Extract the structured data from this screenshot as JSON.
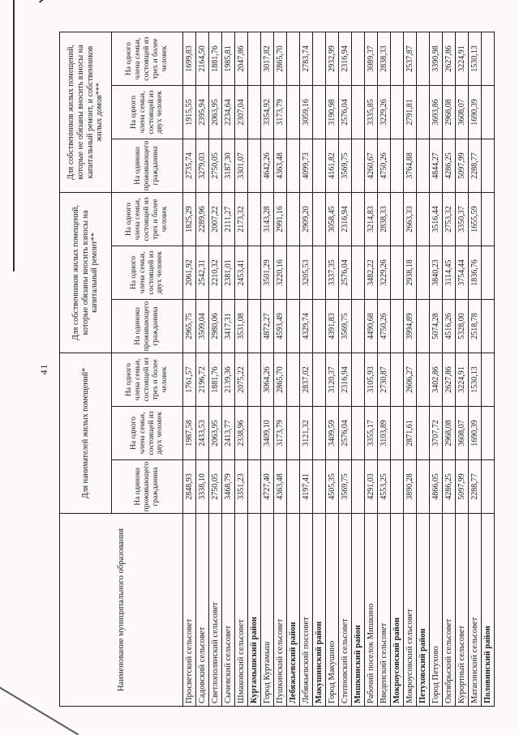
{
  "page": {
    "number": "41"
  },
  "table": {
    "name_header": "Наименование муниципального образования",
    "groups": [
      {
        "label": "Для нанимателей жилых помещений*"
      },
      {
        "label": "Для собственников жилых помещений, которые обязаны вносить взносы на капитальный ремонт**"
      },
      {
        "label": "Для собственников жилых помещений, которые не обязаны вносить взносы на капитальный ремонт, и собственников жилых домов***"
      }
    ],
    "sub_headers": [
      "На одиноко проживающего гражданина",
      "На одного члена семьи, состоящей из двух человек",
      "На одного члена семьи, состоящей из трех и более человек"
    ],
    "rows": [
      {
        "name": "Просветский сельсовет",
        "type": "data",
        "values": [
          "2848,93",
          "1987,58",
          "1761,57",
          "2965,75",
          "2061,92",
          "1825,29",
          "2735,74",
          "1915,55",
          "1699,83"
        ]
      },
      {
        "name": "Садовский сельсовет",
        "type": "data",
        "values": [
          "3338,10",
          "2433,53",
          "2196,72",
          "3509,04",
          "2542,31",
          "2289,96",
          "3279,03",
          "2395,94",
          "2164,50"
        ]
      },
      {
        "name": "Светлополянский сельсовет",
        "type": "data",
        "values": [
          "2750,05",
          "2063,95",
          "1881,76",
          "2980,06",
          "2210,32",
          "2007,22",
          "2750,05",
          "2063,95",
          "1881,76"
        ]
      },
      {
        "name": "Сычевский сельсовет",
        "type": "data",
        "values": [
          "3468,79",
          "2413,77",
          "2139,36",
          "3417,31",
          "2381,01",
          "2111,27",
          "3187,30",
          "2234,64",
          "1985,81"
        ]
      },
      {
        "name": "Шмаковский сельсовет",
        "type": "data",
        "values": [
          "3351,23",
          "2338,96",
          "2075,22",
          "3531,08",
          "2453,41",
          "2173,32",
          "3301,07",
          "2307,04",
          "2047,86"
        ]
      },
      {
        "name": "Куртамышский район",
        "type": "section",
        "values": []
      },
      {
        "name": "Город Куртамыш",
        "type": "data",
        "values": [
          "4727,40",
          "3409,10",
          "3064,26",
          "4872,27",
          "3501,29",
          "3143,28",
          "4642,26",
          "3354,92",
          "3017,82"
        ]
      },
      {
        "name": "Пушкинский сельсовет",
        "type": "data",
        "values": [
          "4363,48",
          "3173,79",
          "2865,70",
          "4593,49",
          "3220,16",
          "2991,16",
          "4363,48",
          "3173,79",
          "2865,70"
        ]
      },
      {
        "name": "Лебяжьевский район",
        "type": "section",
        "values": []
      },
      {
        "name": "Лебяжьевский поссовет",
        "type": "data",
        "values": [
          "4197,41",
          "3121,32",
          "2837,02",
          "4329,74",
          "3205,53",
          "2909,20",
          "4099,73",
          "3059,16",
          "2783,74"
        ]
      },
      {
        "name": "Макушинский район",
        "type": "section",
        "values": []
      },
      {
        "name": "Город Макушино",
        "type": "data",
        "values": [
          "4505,35",
          "3409,59",
          "3120,37",
          "4391,83",
          "3337,35",
          "3058,45",
          "4161,82",
          "3190,98",
          "2932,99"
        ]
      },
      {
        "name": "Степновский сельсовет",
        "type": "data",
        "values": [
          "3569,75",
          "2576,04",
          "2316,94",
          "3569,75",
          "2576,04",
          "2316,94",
          "3569,75",
          "2576,04",
          "2316,94"
        ]
      },
      {
        "name": "Мишкинский район",
        "type": "section",
        "values": []
      },
      {
        "name": "Рабочий поселок Мишкино",
        "type": "data",
        "values": [
          "4291,03",
          "3355,17",
          "3105,93",
          "4490,68",
          "3482,22",
          "3214,83",
          "4260,67",
          "3335,85",
          "3089,37"
        ]
      },
      {
        "name": "Введенский сельсовет",
        "type": "data",
        "values": [
          "4553,25",
          "3103,89",
          "2730,87",
          "4750,26",
          "3229,26",
          "2838,33",
          "4750,26",
          "3229,26",
          "2838,33"
        ]
      },
      {
        "name": "Мокроусовский район",
        "type": "section",
        "values": []
      },
      {
        "name": "Мокроусовский сельсовет",
        "type": "data",
        "values": [
          "3890,28",
          "2871,61",
          "2606,27",
          "3994,89",
          "2938,18",
          "2663,33",
          "3764,88",
          "2791,81",
          "2537,87"
        ]
      },
      {
        "name": "Петуховский район",
        "type": "section",
        "values": []
      },
      {
        "name": "Город Петухово",
        "type": "data",
        "values": [
          "4866,05",
          "3707,72",
          "3402,86",
          "5074,28",
          "3840,23",
          "3516,44",
          "4844,27",
          "3693,86",
          "3390,98"
        ]
      },
      {
        "name": "Октябрьский сельсовет",
        "type": "data",
        "values": [
          "4286,25",
          "2968,08",
          "2627,86",
          "4516,26",
          "3114,45",
          "2753,32",
          "4286,25",
          "2968,08",
          "2627,86"
        ]
      },
      {
        "name": "Курортный сельсовет",
        "type": "data",
        "values": [
          "5097,99",
          "3608,07",
          "3224,91",
          "5328,00",
          "3754,44",
          "3350,37",
          "5097,99",
          "3608,07",
          "3224,91"
        ]
      },
      {
        "name": "Матасинский сельсовет",
        "type": "data",
        "values": [
          "2288,77",
          "1690,39",
          "1530,13",
          "2518,78",
          "1836,76",
          "1655,59",
          "2288,77",
          "1690,39",
          "1530,13"
        ]
      },
      {
        "name": "Половинский район",
        "type": "section",
        "values": []
      }
    ]
  }
}
